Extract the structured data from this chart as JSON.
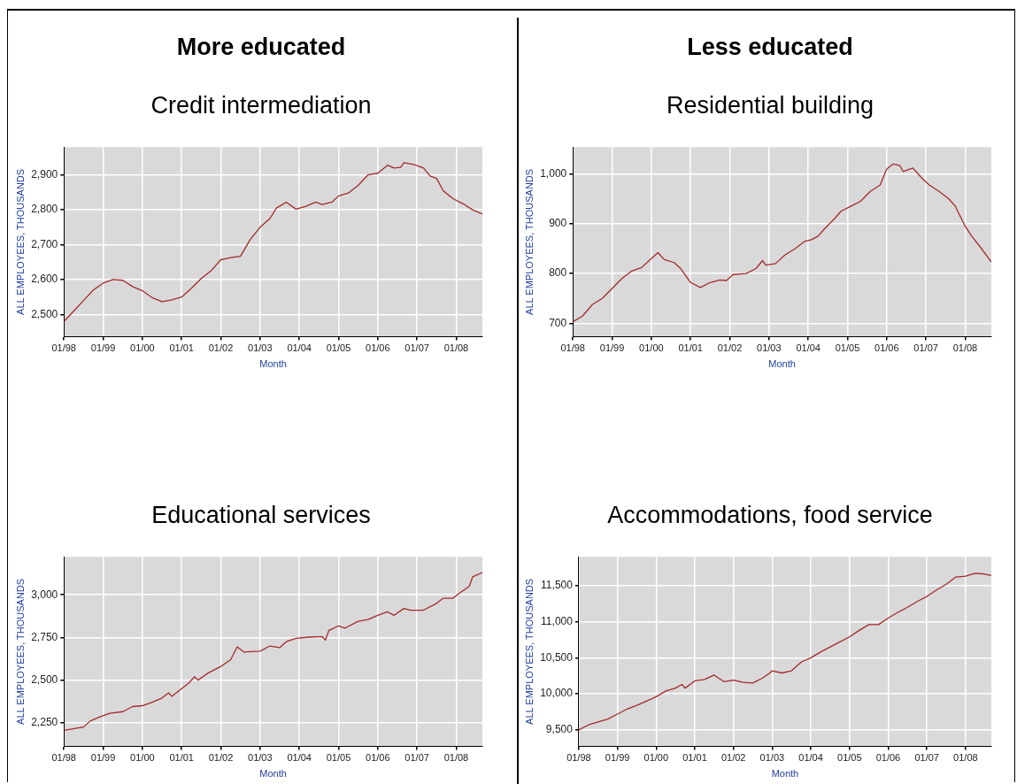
{
  "chart_data": [
    {
      "type": "line",
      "annotations": [
        "More educated"
      ],
      "title": "Credit intermediation",
      "xlabel": "Month",
      "ylabel": "ALL EMPLOYEES, THOUSANDS",
      "grid": true,
      "marker": "none",
      "line_style": "solid",
      "xlim": [
        "1998-01",
        "2008-09"
      ],
      "xticks": [
        {
          "value": "1998-01",
          "label": "01/98"
        },
        {
          "value": "1999-01",
          "label": "01/99"
        },
        {
          "value": "2000-01",
          "label": "01/00"
        },
        {
          "value": "2001-01",
          "label": "01/01"
        },
        {
          "value": "2002-01",
          "label": "01/02"
        },
        {
          "value": "2003-01",
          "label": "01/03"
        },
        {
          "value": "2004-01",
          "label": "01/04"
        },
        {
          "value": "2005-01",
          "label": "01/05"
        },
        {
          "value": "2006-01",
          "label": "01/06"
        },
        {
          "value": "2007-01",
          "label": "01/07"
        },
        {
          "value": "2008-01",
          "label": "01/08"
        }
      ],
      "ylim": [
        2436,
        2980
      ],
      "yticks": [
        {
          "value": 2500,
          "label": "2,500"
        },
        {
          "value": 2600,
          "label": "2,600"
        },
        {
          "value": 2700,
          "label": "2,700"
        },
        {
          "value": 2800,
          "label": "2,800"
        },
        {
          "value": 2900,
          "label": "2,900"
        }
      ],
      "series": [
        {
          "color": "#a52a2a",
          "x": [
            "1998-01",
            "1998-04",
            "1998-07",
            "1998-10",
            "1999-01",
            "1999-04",
            "1999-07",
            "1999-10",
            "2000-01",
            "2000-04",
            "2000-07",
            "2000-10",
            "2001-01",
            "2001-04",
            "2001-07",
            "2001-10",
            "2002-01",
            "2002-04",
            "2002-07",
            "2002-10",
            "2003-01",
            "2003-04",
            "2003-06",
            "2003-09",
            "2003-12",
            "2004-03",
            "2004-06",
            "2004-08",
            "2004-11",
            "2005-01",
            "2005-04",
            "2005-07",
            "2005-10",
            "2006-01",
            "2006-04",
            "2006-06",
            "2006-08",
            "2006-09",
            "2006-12",
            "2007-03",
            "2007-05",
            "2007-07",
            "2007-09",
            "2007-12",
            "2008-03",
            "2008-06",
            "2008-09"
          ],
          "values": [
            2480,
            2510,
            2540,
            2570,
            2590,
            2600,
            2598,
            2580,
            2568,
            2548,
            2537,
            2542,
            2550,
            2575,
            2603,
            2625,
            2657,
            2663,
            2667,
            2715,
            2750,
            2775,
            2805,
            2822,
            2802,
            2810,
            2822,
            2815,
            2822,
            2840,
            2848,
            2870,
            2900,
            2905,
            2928,
            2920,
            2922,
            2935,
            2930,
            2920,
            2897,
            2890,
            2855,
            2832,
            2818,
            2800,
            2788
          ]
        }
      ]
    },
    {
      "type": "line",
      "annotations": [
        "Less educated"
      ],
      "title": "Residential building",
      "xlabel": "Month",
      "ylabel": "ALL EMPLOYEES, THOUSANDS",
      "grid": true,
      "marker": "none",
      "line_style": "solid",
      "xlim": [
        "1998-01",
        "2008-09"
      ],
      "xticks": [
        {
          "value": "1998-01",
          "label": "01/98"
        },
        {
          "value": "1999-01",
          "label": "01/99"
        },
        {
          "value": "2000-01",
          "label": "01/00"
        },
        {
          "value": "2001-01",
          "label": "01/01"
        },
        {
          "value": "2002-01",
          "label": "01/02"
        },
        {
          "value": "2003-01",
          "label": "01/03"
        },
        {
          "value": "2004-01",
          "label": "01/04"
        },
        {
          "value": "2005-01",
          "label": "01/05"
        },
        {
          "value": "2006-01",
          "label": "01/06"
        },
        {
          "value": "2007-01",
          "label": "01/07"
        },
        {
          "value": "2008-01",
          "label": "01/08"
        }
      ],
      "ylim": [
        673,
        1054
      ],
      "yticks": [
        700,
        800,
        900,
        {
          "value": 1000,
          "label": "1,000"
        }
      ],
      "series": [
        {
          "color": "#a52a2a",
          "x": [
            "1998-01",
            "1998-04",
            "1998-07",
            "1998-10",
            "1999-01",
            "1999-04",
            "1999-07",
            "1999-10",
            "2000-01",
            "2000-03",
            "2000-05",
            "2000-08",
            "2000-10",
            "2001-01",
            "2001-04",
            "2001-07",
            "2001-10",
            "2001-12",
            "2002-02",
            "2002-06",
            "2002-09",
            "2002-11",
            "2002-12",
            "2003-03",
            "2003-06",
            "2003-09",
            "2003-12",
            "2004-02",
            "2004-04",
            "2004-06",
            "2004-09",
            "2004-11",
            "2005-02",
            "2005-05",
            "2005-08",
            "2005-11",
            "2006-01",
            "2006-03",
            "2006-05",
            "2006-06",
            "2006-09",
            "2006-12",
            "2007-02",
            "2007-05",
            "2007-08",
            "2007-10",
            "2008-01",
            "2008-03",
            "2008-06",
            "2008-09"
          ],
          "values": [
            703,
            715,
            738,
            750,
            770,
            790,
            805,
            812,
            830,
            842,
            828,
            822,
            810,
            782,
            772,
            782,
            787,
            786,
            798,
            800,
            810,
            826,
            817,
            820,
            838,
            850,
            865,
            868,
            875,
            890,
            910,
            925,
            935,
            945,
            965,
            978,
            1010,
            1020,
            1017,
            1005,
            1012,
            990,
            978,
            965,
            950,
            935,
            895,
            875,
            850,
            823
          ]
        }
      ]
    },
    {
      "type": "line",
      "title": "Educational services",
      "xlabel": "Month",
      "ylabel": "ALL EMPLOYEES, THOUSANDS",
      "grid": true,
      "marker": "none",
      "line_style": "solid",
      "xlim": [
        "1998-01",
        "2008-09"
      ],
      "xticks": [
        {
          "value": "1998-01",
          "label": "01/98"
        },
        {
          "value": "1999-01",
          "label": "01/99"
        },
        {
          "value": "2000-01",
          "label": "01/00"
        },
        {
          "value": "2001-01",
          "label": "01/01"
        },
        {
          "value": "2002-01",
          "label": "01/02"
        },
        {
          "value": "2003-01",
          "label": "01/03"
        },
        {
          "value": "2004-01",
          "label": "01/04"
        },
        {
          "value": "2005-01",
          "label": "01/05"
        },
        {
          "value": "2006-01",
          "label": "01/06"
        },
        {
          "value": "2007-01",
          "label": "01/07"
        },
        {
          "value": "2008-01",
          "label": "01/08"
        }
      ],
      "ylim": [
        2111,
        3223
      ],
      "yticks": [
        {
          "value": 2250,
          "label": "2,250"
        },
        {
          "value": 2500,
          "label": "2,500"
        },
        {
          "value": 2750,
          "label": "2,750"
        },
        {
          "value": 3000,
          "label": "3,000"
        }
      ],
      "series": [
        {
          "color": "#a52a2a",
          "x": [
            "1998-01",
            "1998-07",
            "1998-09",
            "1998-12",
            "1999-03",
            "1999-07",
            "1999-10",
            "2000-01",
            "2000-04",
            "2000-07",
            "2000-09",
            "2000-10",
            "2001-01",
            "2001-03",
            "2001-05",
            "2001-06",
            "2001-09",
            "2002-01",
            "2002-04",
            "2002-06",
            "2002-08",
            "2003-01",
            "2003-04",
            "2003-07",
            "2003-09",
            "2003-12",
            "2004-04",
            "2004-08",
            "2004-09",
            "2004-10",
            "2005-01",
            "2005-03",
            "2005-07",
            "2005-10",
            "2006-01",
            "2006-04",
            "2006-06",
            "2006-09",
            "2006-11",
            "2007-03",
            "2007-07",
            "2007-09",
            "2007-12",
            "2008-02",
            "2008-05",
            "2008-06",
            "2008-09"
          ],
          "values": [
            2205,
            2225,
            2260,
            2285,
            2305,
            2315,
            2345,
            2350,
            2370,
            2395,
            2425,
            2405,
            2450,
            2480,
            2520,
            2500,
            2540,
            2580,
            2620,
            2695,
            2665,
            2670,
            2700,
            2690,
            2725,
            2745,
            2752,
            2755,
            2735,
            2790,
            2818,
            2805,
            2845,
            2855,
            2880,
            2900,
            2880,
            2920,
            2910,
            2910,
            2950,
            2980,
            2980,
            3010,
            3050,
            3105,
            3130
          ]
        }
      ]
    },
    {
      "type": "line",
      "title": "Accommodations, food service",
      "xlabel": "Month",
      "ylabel": "ALL EMPLOYEES, THOUSANDS",
      "grid": true,
      "marker": "none",
      "line_style": "solid",
      "xlim": [
        "1998-01",
        "2008-09"
      ],
      "xticks": [
        {
          "value": "1998-01",
          "label": "01/98"
        },
        {
          "value": "1999-01",
          "label": "01/99"
        },
        {
          "value": "2000-01",
          "label": "01/00"
        },
        {
          "value": "2001-01",
          "label": "01/01"
        },
        {
          "value": "2002-01",
          "label": "01/02"
        },
        {
          "value": "2003-01",
          "label": "01/03"
        },
        {
          "value": "2004-01",
          "label": "01/04"
        },
        {
          "value": "2005-01",
          "label": "01/05"
        },
        {
          "value": "2006-01",
          "label": "01/06"
        },
        {
          "value": "2007-01",
          "label": "01/07"
        },
        {
          "value": "2008-01",
          "label": "01/08"
        }
      ],
      "ylim": [
        9271,
        11900
      ],
      "yticks": [
        {
          "value": 9500,
          "label": "9,500"
        },
        {
          "value": 10000,
          "label": "10,000"
        },
        {
          "value": 10500,
          "label": "10,500"
        },
        {
          "value": 11000,
          "label": "11,000"
        },
        {
          "value": 11500,
          "label": "11,500"
        }
      ],
      "series": [
        {
          "color": "#a52a2a",
          "x": [
            "1998-01",
            "1998-04",
            "1998-07",
            "1998-10",
            "1999-01",
            "1999-04",
            "1999-07",
            "1999-10",
            "2000-01",
            "2000-04",
            "2000-07",
            "2000-09",
            "2000-10",
            "2001-01",
            "2001-04",
            "2001-07",
            "2001-10",
            "2002-01",
            "2002-04",
            "2002-07",
            "2002-10",
            "2002-12",
            "2003-01",
            "2003-04",
            "2003-07",
            "2003-10",
            "2004-01",
            "2004-04",
            "2004-07",
            "2004-10",
            "2005-01",
            "2005-04",
            "2005-07",
            "2005-10",
            "2006-01",
            "2006-04",
            "2006-07",
            "2006-10",
            "2007-01",
            "2007-04",
            "2007-07",
            "2007-10",
            "2008-01",
            "2008-04",
            "2008-07",
            "2008-09"
          ],
          "values": [
            9500,
            9570,
            9610,
            9650,
            9720,
            9790,
            9840,
            9900,
            9960,
            10040,
            10080,
            10130,
            10080,
            10180,
            10200,
            10260,
            10170,
            10190,
            10160,
            10150,
            10220,
            10280,
            10320,
            10290,
            10320,
            10440,
            10500,
            10580,
            10650,
            10720,
            10790,
            10880,
            10960,
            10960,
            11050,
            11130,
            11200,
            11280,
            11350,
            11440,
            11520,
            11620,
            11630,
            11670,
            11660,
            11640
          ]
        }
      ]
    }
  ]
}
